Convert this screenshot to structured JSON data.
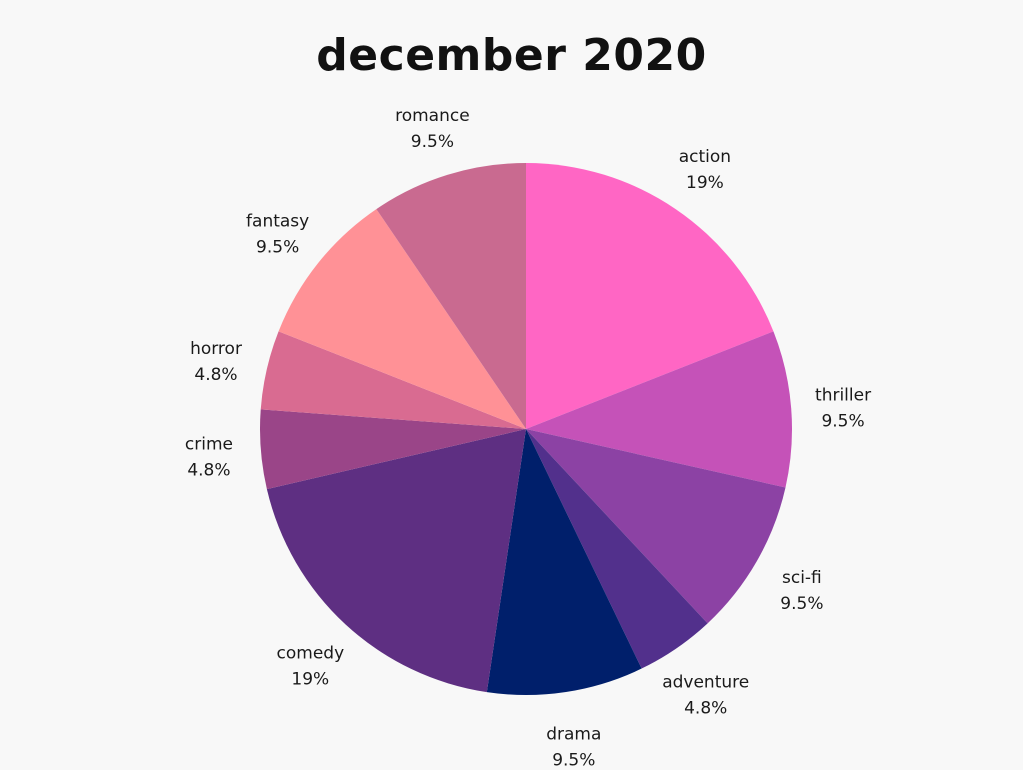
{
  "chart_data": {
    "type": "pie",
    "title": "december 2020",
    "slices": [
      {
        "label": "action",
        "value": 19,
        "value_label": "19%",
        "color": "#ff66c4"
      },
      {
        "label": "thriller",
        "value": 9.5,
        "value_label": "9.5%",
        "color": "#c552b8"
      },
      {
        "label": "sci-fi",
        "value": 9.5,
        "value_label": "9.5%",
        "color": "#8c42a4"
      },
      {
        "label": "adventure",
        "value": 4.8,
        "value_label": "4.8%",
        "color": "#52308c"
      },
      {
        "label": "drama",
        "value": 9.5,
        "value_label": "9.5%",
        "color": "#001f6b"
      },
      {
        "label": "comedy",
        "value": 19,
        "value_label": "19%",
        "color": "#5e2f82"
      },
      {
        "label": "crime",
        "value": 4.8,
        "value_label": "4.8%",
        "color": "#9a4588"
      },
      {
        "label": "horror",
        "value": 4.8,
        "value_label": "4.8%",
        "color": "#d96b91"
      },
      {
        "label": "fantasy",
        "value": 9.5,
        "value_label": "9.5%",
        "color": "#ff9196"
      },
      {
        "label": "romance",
        "value": 9.5,
        "value_label": "9.5%",
        "color": "#c96a90"
      }
    ]
  }
}
